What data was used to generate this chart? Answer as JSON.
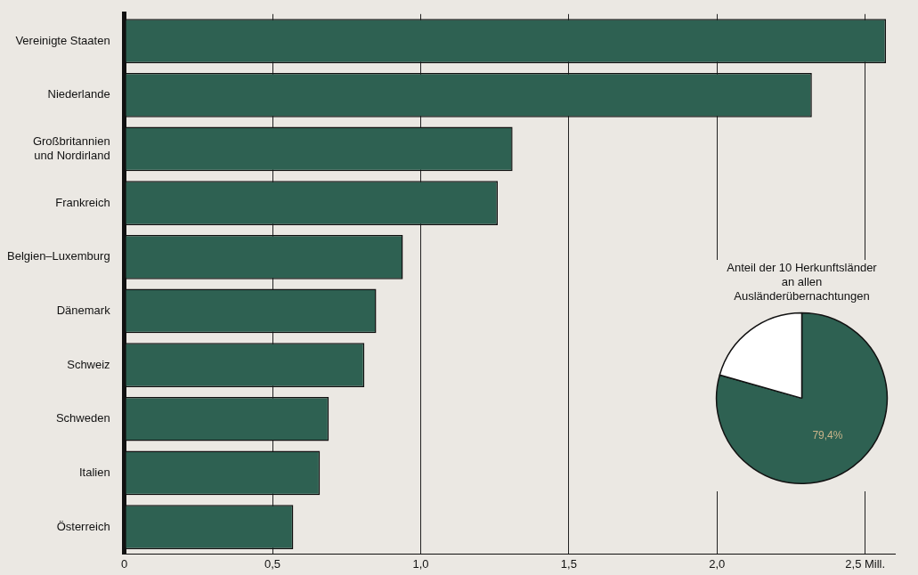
{
  "chart_data": [
    {
      "type": "bar",
      "orientation": "horizontal",
      "categories": [
        "Vereinigte Staaten",
        "Niederlande",
        "Großbritannien und Nordirland",
        "Frankreich",
        "Belgien–Luxemburg",
        "Dänemark",
        "Schweiz",
        "Schweden",
        "Italien",
        "Österreich"
      ],
      "values": [
        2.57,
        2.32,
        1.31,
        1.26,
        0.94,
        0.85,
        0.81,
        0.69,
        0.66,
        0.57
      ],
      "color": "#2e6152",
      "xlim": [
        0,
        2.6
      ],
      "xticks": [
        0,
        {
          "value": 0.5,
          "label": "0,5"
        },
        {
          "value": 1,
          "label": "1,0"
        },
        {
          "value": 1.5,
          "label": "1,5"
        },
        {
          "value": 2,
          "label": "2,0"
        },
        {
          "value": 2.5,
          "label": "2,5 Mill."
        }
      ],
      "grid": "x",
      "legend": false
    },
    {
      "type": "pie",
      "title": "Anteil der 10 Herkunftsländer an allen Ausländerübernachtungen",
      "categories": [
        null,
        null
      ],
      "values": [
        79.4,
        20.6
      ],
      "colors": [
        "#2e6152",
        "#ffffff"
      ],
      "value_labels": [
        "79,4%",
        null
      ],
      "legend": false
    }
  ]
}
